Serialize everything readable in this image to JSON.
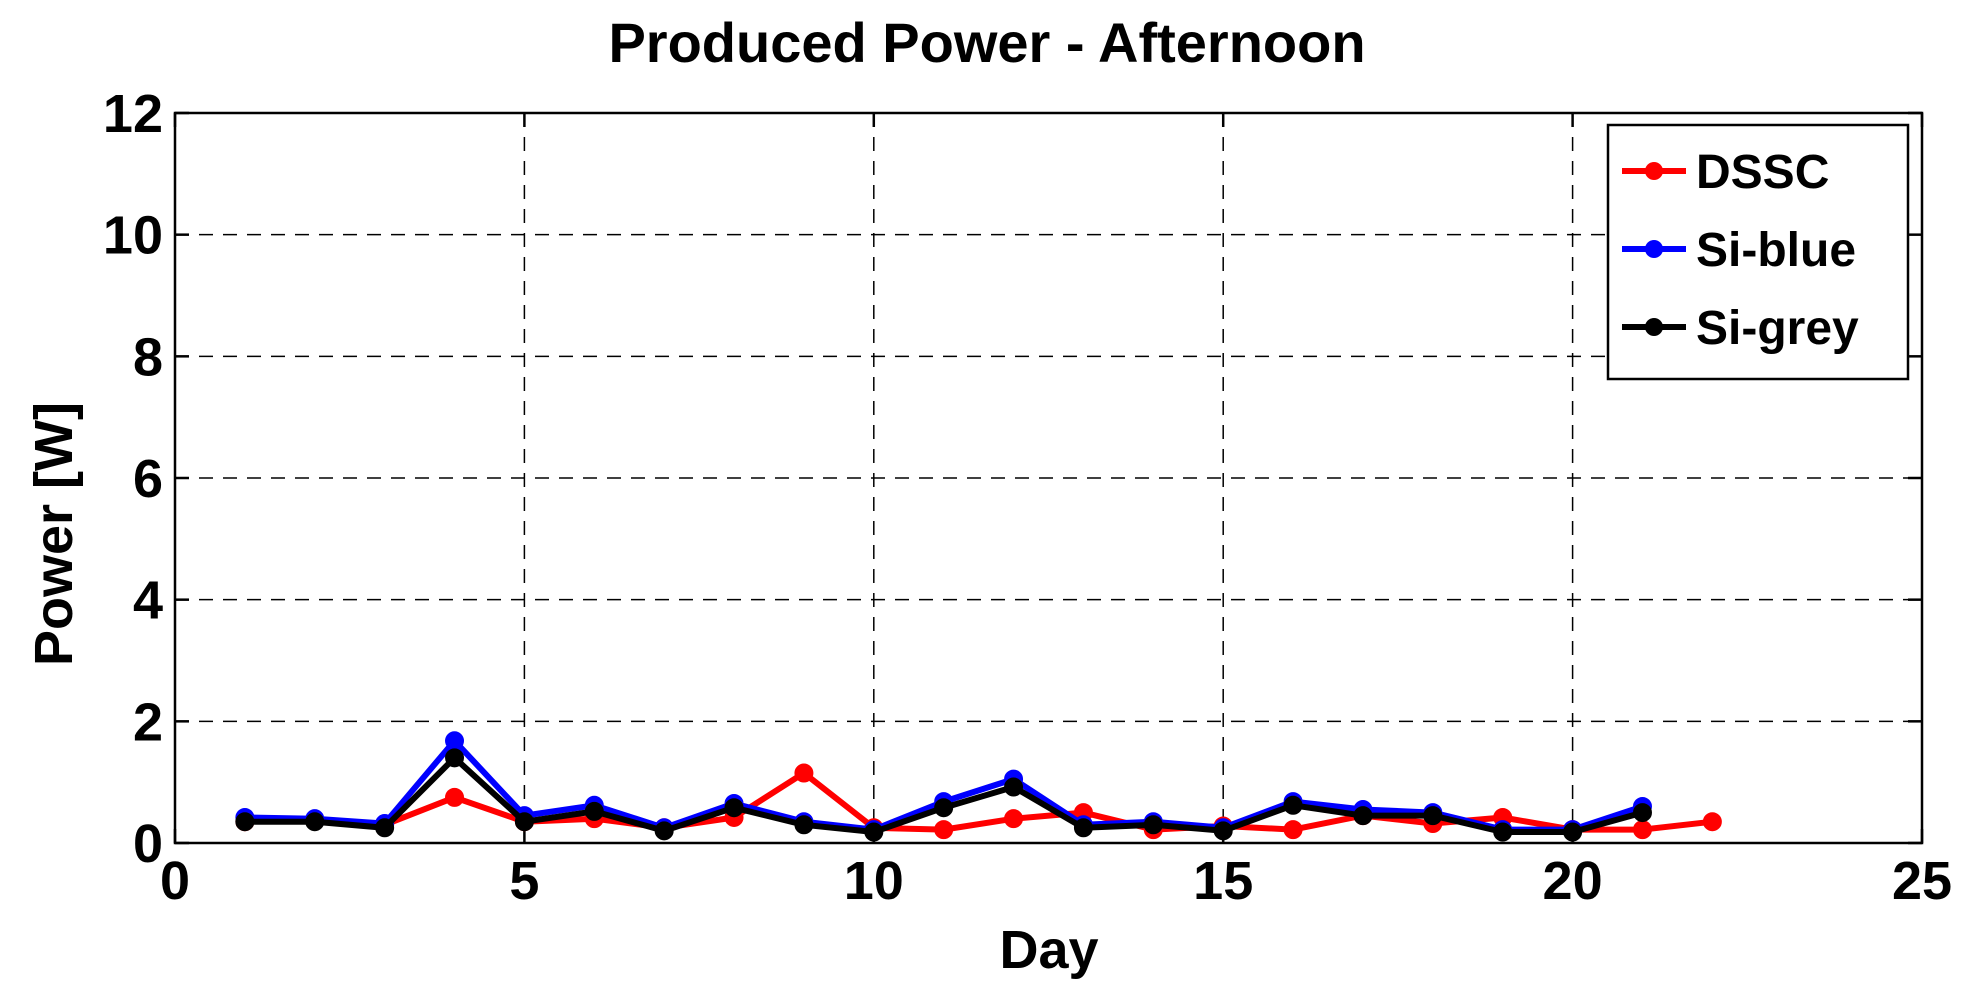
{
  "chart_data": {
    "type": "line",
    "title": "Produced Power - Afternoon",
    "xlabel": "Day",
    "ylabel": "Power [W]",
    "xlim": [
      0,
      25
    ],
    "ylim": [
      0,
      12
    ],
    "xticks": [
      0,
      5,
      10,
      15,
      20,
      25
    ],
    "yticks": [
      0,
      2,
      4,
      6,
      8,
      10,
      12
    ],
    "grid": true,
    "legend_position": "top-right",
    "series": [
      {
        "name": "DSSC",
        "color": "#ff0000",
        "x": [
          1,
          2,
          3,
          4,
          5,
          6,
          7,
          8,
          9,
          10,
          11,
          12,
          13,
          14,
          15,
          16,
          17,
          18,
          19,
          20,
          21,
          22
        ],
        "y": [
          0.35,
          0.38,
          0.3,
          0.75,
          0.35,
          0.4,
          0.25,
          0.42,
          1.15,
          0.25,
          0.22,
          0.4,
          0.5,
          0.22,
          0.28,
          0.22,
          0.45,
          0.32,
          0.42,
          0.22,
          0.22,
          0.35
        ]
      },
      {
        "name": "Si-blue",
        "color": "#0000ff",
        "x": [
          1,
          2,
          3,
          4,
          5,
          6,
          7,
          8,
          9,
          10,
          11,
          12,
          13,
          14,
          15,
          16,
          17,
          18,
          19,
          20,
          21
        ],
        "y": [
          0.42,
          0.4,
          0.32,
          1.68,
          0.45,
          0.62,
          0.25,
          0.65,
          0.35,
          0.22,
          0.68,
          1.05,
          0.3,
          0.35,
          0.25,
          0.68,
          0.55,
          0.5,
          0.22,
          0.22,
          0.6
        ]
      },
      {
        "name": "Si-grey",
        "color": "#000000",
        "x": [
          1,
          2,
          3,
          4,
          5,
          6,
          7,
          8,
          9,
          10,
          11,
          12,
          13,
          14,
          15,
          16,
          17,
          18,
          19,
          20,
          21
        ],
        "y": [
          0.35,
          0.35,
          0.25,
          1.4,
          0.35,
          0.52,
          0.2,
          0.58,
          0.3,
          0.18,
          0.58,
          0.92,
          0.25,
          0.3,
          0.2,
          0.62,
          0.45,
          0.45,
          0.18,
          0.18,
          0.5
        ]
      }
    ]
  }
}
